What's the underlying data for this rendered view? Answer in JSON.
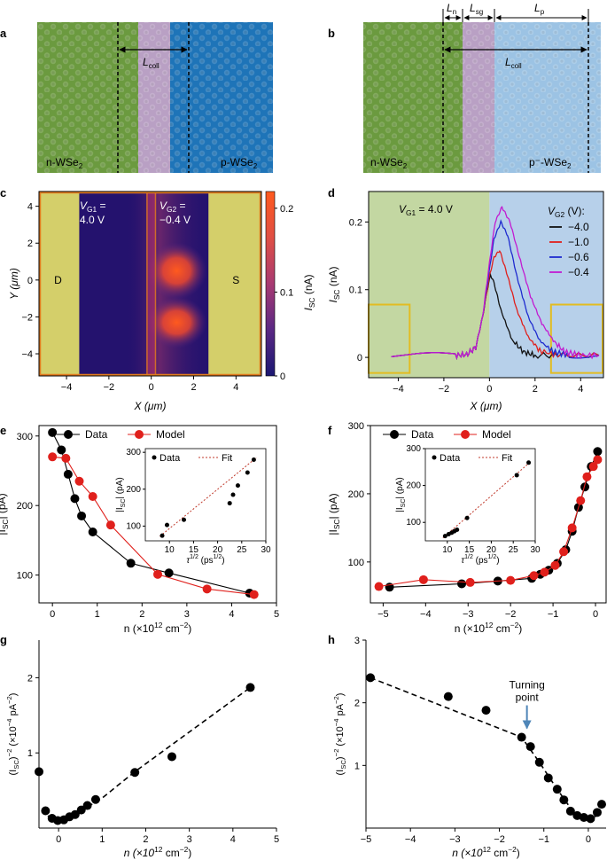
{
  "figure": {
    "panel_labels": [
      "a",
      "b",
      "c",
      "d",
      "e",
      "f",
      "g",
      "h"
    ]
  },
  "panel_a": {
    "left_label_base": "n-WSe",
    "left_label_sub": "2",
    "right_label_base": "p-WSe",
    "right_label_sub": "2",
    "lcoll_base": "L",
    "lcoll_sub": "coll"
  },
  "panel_b": {
    "left_label_base": "n-WSe",
    "left_label_sub": "2",
    "right_label_base": "p⁻-WSe",
    "right_label_sub": "2",
    "ln_base": "L",
    "ln_sub": "n",
    "lsg_base": "L",
    "lsg_sub": "sg",
    "lp_base": "L",
    "lp_sub": "p",
    "lcoll_base": "L",
    "lcoll_sub": "coll"
  },
  "colors": {
    "green": "#6b9a3f",
    "purple": "#b9a0c4",
    "blue": "#1e74b8",
    "lightblue": "#9cc3e4",
    "gold": "#e2bc22",
    "navy": "#24126e",
    "red": "#e0201c",
    "magenta": "#c21bd1",
    "dblue": "#1f2bcf",
    "arrow": "#4f86b8"
  },
  "chart_data": [
    {
      "panel": "c",
      "type": "heatmap",
      "xlabel": "X (μm)",
      "ylabel": "Y (μm)",
      "xlim": [
        -5.3,
        5.2
      ],
      "ylim": [
        -5.2,
        4.8
      ],
      "x_ticks": [
        -4,
        -2,
        0,
        2,
        4
      ],
      "y_ticks": [
        -4,
        -2,
        0,
        2,
        4
      ],
      "contact_left_label": "D",
      "contact_right_label": "S",
      "contact_left_range": [
        -5.3,
        -3.4
      ],
      "contact_right_range": [
        2.7,
        5.2
      ],
      "gate_gap": [
        -0.2,
        0.2
      ],
      "vg1_label": [
        "V",
        "G1",
        " =",
        "4.0 V"
      ],
      "vg2_label": [
        "V",
        "G2",
        " =",
        "−0.4 V"
      ],
      "colorbar_ticks": [
        "0",
        "0.1",
        "0.2"
      ],
      "colorbar_values": [
        0,
        0.1,
        0.2
      ],
      "colorbar_max": 0.22,
      "colorbar_label": [
        "I",
        "SC",
        " (nA)"
      ],
      "hotspots": [
        {
          "x": 1.2,
          "y": 0.5,
          "amp": 1.0
        },
        {
          "x": 1.2,
          "y": -2.3,
          "amp": 0.9
        }
      ]
    },
    {
      "panel": "d",
      "type": "line",
      "xlabel": "X (μm)",
      "ylabel": [
        "I",
        "SC",
        " (nA)"
      ],
      "xlim": [
        -5.3,
        5.0
      ],
      "ylim": [
        -0.03,
        0.245
      ],
      "x_ticks": [
        -4,
        -2,
        0,
        2,
        4
      ],
      "y_ticks": [
        0,
        0.1,
        0.2
      ],
      "vg1_label": [
        "V",
        "G1",
        " = 4.0 V"
      ],
      "legend_title": [
        "V",
        "G2",
        " (V):"
      ],
      "series": [
        {
          "name": "−4.0",
          "color": "#111111",
          "x": [
            -4.3,
            -1.5,
            -1,
            -0.6,
            -0.3,
            -0.1,
            0.05,
            0.2,
            0.5,
            1,
            1.5,
            2,
            3,
            4.8
          ],
          "values": [
            0.003,
            0.003,
            0.004,
            0.015,
            0.06,
            0.1,
            0.122,
            0.11,
            0.07,
            0.025,
            0.008,
            0.003,
            0.003,
            0.003
          ]
        },
        {
          "name": "−1.0",
          "color": "#e0201c",
          "x": [
            -4.3,
            -1.5,
            -1,
            -0.6,
            -0.3,
            0,
            0.2,
            0.45,
            0.8,
            1.2,
            1.7,
            2.2,
            3,
            4.8
          ],
          "values": [
            0.003,
            0.003,
            0.004,
            0.015,
            0.06,
            0.12,
            0.148,
            0.158,
            0.12,
            0.07,
            0.03,
            0.01,
            0.003,
            0.003
          ]
        },
        {
          "name": "−0.6",
          "color": "#1f2bcf",
          "x": [
            -4.3,
            -1.5,
            -1,
            -0.6,
            -0.3,
            0,
            0.2,
            0.5,
            0.8,
            1.2,
            1.7,
            2.2,
            2.8,
            3.5,
            4.8
          ],
          "values": [
            0.003,
            0.003,
            0.004,
            0.015,
            0.06,
            0.13,
            0.175,
            0.2,
            0.18,
            0.12,
            0.06,
            0.025,
            0.008,
            0.003,
            0.003
          ]
        },
        {
          "name": "−0.4",
          "color": "#c21bd1",
          "x": [
            -4.3,
            -1.5,
            -1,
            -0.6,
            -0.3,
            0,
            0.25,
            0.55,
            0.9,
            1.3,
            1.8,
            2.3,
            2.8,
            3.3,
            4,
            4.8
          ],
          "values": [
            0.003,
            0.003,
            0.004,
            0.015,
            0.06,
            0.14,
            0.2,
            0.222,
            0.2,
            0.15,
            0.09,
            0.05,
            0.025,
            0.008,
            0.003,
            0.003
          ]
        }
      ]
    },
    {
      "panel": "e",
      "type": "line",
      "xlabel": [
        "n (×10",
        "12",
        " cm",
        "−2",
        ")"
      ],
      "ylabel": [
        "|I",
        "SC",
        "| (pA)"
      ],
      "xlim": [
        -0.3,
        5
      ],
      "ylim": [
        60,
        315
      ],
      "x_ticks": [
        0,
        1,
        2,
        3,
        4,
        5
      ],
      "y_ticks": [
        100,
        200,
        300
      ],
      "legend": [
        "Data",
        "Model"
      ],
      "series": [
        {
          "name": "Data",
          "color": "#000000",
          "x": [
            0,
            0.2,
            0.35,
            0.5,
            0.65,
            0.9,
            1.75,
            2.6,
            4.4
          ],
          "values": [
            305,
            280,
            245,
            210,
            185,
            162,
            117,
            103,
            74
          ]
        },
        {
          "name": "Model",
          "color": "#e0201c",
          "x": [
            0,
            0.3,
            0.6,
            0.9,
            1.3,
            2.35,
            3.45,
            4.5
          ],
          "values": [
            270,
            268,
            235,
            213,
            172,
            101,
            80,
            72
          ]
        }
      ],
      "inset": {
        "xlabel": [
          "τ",
          "1/2",
          " (ps",
          "1/2",
          ")"
        ],
        "ylabel": [
          "|I",
          "SC",
          "| (pA)"
        ],
        "legend": [
          "Data",
          "Fit"
        ],
        "xlim": [
          5,
          30
        ],
        "ylim": [
          60,
          310
        ],
        "x_ticks": [
          10,
          15,
          20,
          25,
          30
        ],
        "y_ticks": [
          100,
          200,
          300
        ],
        "points_x": [
          8.5,
          9.5,
          13,
          22.5,
          23.2,
          24.2,
          26.2,
          27.5
        ],
        "points_y": [
          74,
          103,
          117,
          162,
          185,
          210,
          245,
          280
        ],
        "fit_x": [
          8,
          28
        ],
        "fit_y": [
          72,
          285
        ]
      }
    },
    {
      "panel": "f",
      "type": "line",
      "xlabel": [
        "n (×10",
        "12",
        " cm",
        "−2",
        ")"
      ],
      "ylabel": [
        "|I",
        "SC",
        "| (pA)"
      ],
      "xlim": [
        -5.3,
        0.25
      ],
      "ylim": [
        40,
        300
      ],
      "x_ticks": [
        -5,
        -4,
        -3,
        -2,
        -1,
        0
      ],
      "y_ticks": [
        100,
        200,
        300
      ],
      "legend": [
        "Data",
        "Model"
      ],
      "series": [
        {
          "name": "Data",
          "color": "#000000",
          "x": [
            -4.85,
            -3.15,
            -2.3,
            -1.5,
            -1.3,
            -1.1,
            -0.9,
            -0.7,
            -0.55,
            -0.4,
            -0.25,
            -0.1,
            0.05
          ],
          "values": [
            63,
            68,
            72,
            76,
            82,
            88,
            98,
            118,
            145,
            180,
            210,
            240,
            262
          ]
        },
        {
          "name": "Model",
          "color": "#e0201c",
          "x": [
            -5.1,
            -4.05,
            -2.95,
            -2.0,
            -1.45,
            -1.2,
            -0.95,
            -0.75,
            -0.55,
            -0.35,
            -0.2,
            -0.05,
            0.05
          ],
          "values": [
            64,
            74,
            70,
            73,
            80,
            85,
            95,
            115,
            150,
            190,
            225,
            240,
            250
          ]
        }
      ],
      "inset": {
        "xlabel": [
          "τ",
          "1/2",
          " (ps",
          "1/2",
          ")"
        ],
        "ylabel": [
          "|I",
          "SC",
          "| (pA)"
        ],
        "legend": [
          "Data",
          "Fit"
        ],
        "xlim": [
          5,
          30
        ],
        "ylim": [
          50,
          300
        ],
        "x_ticks": [
          10,
          15,
          20,
          25,
          30
        ],
        "y_ticks": [
          100,
          200,
          300
        ],
        "points_x": [
          9.5,
          10.3,
          11,
          11.6,
          12.2,
          14.5,
          25.8,
          28.5
        ],
        "points_y": [
          63,
          68,
          72,
          76,
          80,
          112,
          228,
          262
        ],
        "fit_x": [
          9,
          29
        ],
        "fit_y": [
          58,
          265
        ]
      }
    },
    {
      "panel": "g",
      "type": "scatter",
      "xlabel": [
        "n (×10",
        "12",
        " cm",
        "−2",
        ")"
      ],
      "ylabel": [
        "(I",
        "SC",
        ")",
        "−2",
        " (×10",
        "−4",
        " pA",
        "−2",
        ")"
      ],
      "xlim": [
        -0.45,
        5
      ],
      "ylim": [
        0,
        2.5
      ],
      "x_ticks": [
        0,
        1,
        2,
        3,
        4,
        5
      ],
      "y_ticks": [
        1,
        2
      ],
      "x": [
        -0.45,
        -0.3,
        -0.15,
        -0.02,
        0.12,
        0.25,
        0.38,
        0.52,
        0.66,
        0.85,
        1.75,
        2.6,
        4.4
      ],
      "values": [
        0.75,
        0.23,
        0.13,
        0.1,
        0.11,
        0.15,
        0.18,
        0.24,
        0.3,
        0.38,
        0.74,
        0.95,
        1.87
      ],
      "fit_x": [
        -0.25,
        0.2,
        0.6,
        1.0,
        1.75,
        4.4
      ],
      "fit_y": [
        0.16,
        0.11,
        0.26,
        0.4,
        0.75,
        1.87
      ]
    },
    {
      "panel": "h",
      "type": "scatter",
      "xlabel": [
        "n (×10",
        "12",
        " cm",
        "−2",
        ")"
      ],
      "ylabel": [
        "(I",
        "SC",
        ")",
        "−2",
        " (×10",
        "−4",
        " pA",
        "−2",
        ")"
      ],
      "xlim": [
        -5,
        0.4
      ],
      "ylim": [
        0,
        3
      ],
      "x_ticks": [
        -5,
        -4,
        -3,
        -2,
        -1,
        0
      ],
      "y_ticks": [
        1,
        2,
        3
      ],
      "x": [
        -4.9,
        -3.15,
        -2.3,
        -1.5,
        -1.3,
        -1.1,
        -0.9,
        -0.7,
        -0.55,
        -0.4,
        -0.25,
        -0.1,
        0.05,
        0.2,
        0.3
      ],
      "values": [
        2.4,
        2.1,
        1.88,
        1.45,
        1.3,
        1.05,
        0.8,
        0.62,
        0.45,
        0.27,
        0.2,
        0.17,
        0.15,
        0.25,
        0.38
      ],
      "fit_x": [
        -4.9,
        -1.5,
        -1.1,
        -0.7,
        -0.3,
        0,
        0.2
      ],
      "fit_y": [
        2.4,
        1.45,
        1.05,
        0.62,
        0.22,
        0.14,
        0.2
      ],
      "annotation": "Turning",
      "annotation2": "point",
      "annotation_target": [
        -1.5,
        1.45
      ]
    }
  ]
}
